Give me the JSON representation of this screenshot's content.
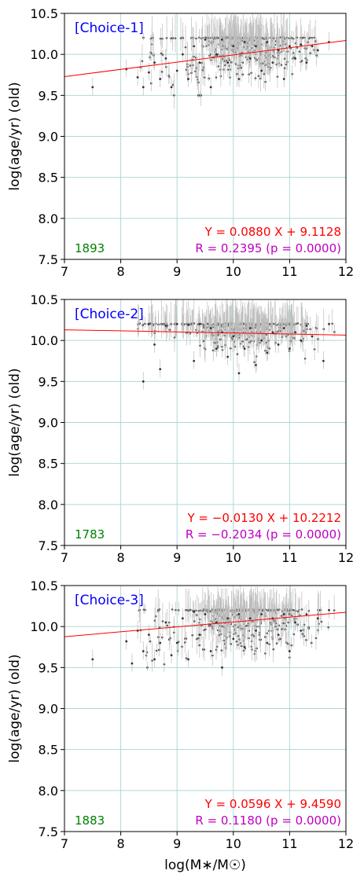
{
  "chart_data": [
    {
      "type": "scatter",
      "title": "",
      "panel_label": "[Choice-1]",
      "xlabel": "",
      "ylabel": "log(age/yr) (old)",
      "xlim": [
        7,
        12
      ],
      "ylim": [
        7.5,
        10.5
      ],
      "xticks": [
        "7",
        "8",
        "9",
        "10",
        "11",
        "12"
      ],
      "yticks": [
        "7.5",
        "8.0",
        "8.5",
        "9.0",
        "9.5",
        "10.0",
        "10.5"
      ],
      "grid": true,
      "count": "1893",
      "fit_equation": "Y = 0.0880 X + 9.1128",
      "fit_stats": "R = 0.2395 (p = 0.0000)",
      "fit": {
        "slope": 0.088,
        "intercept": 9.1128
      },
      "sample_points": [
        [
          7.5,
          9.6
        ],
        [
          8.1,
          9.82
        ],
        [
          8.3,
          9.72
        ],
        [
          8.4,
          9.6
        ],
        [
          8.5,
          9.78
        ],
        [
          8.6,
          9.9
        ],
        [
          8.7,
          9.7
        ],
        [
          8.8,
          9.95
        ],
        [
          8.9,
          9.6
        ],
        [
          9.0,
          9.8
        ],
        [
          9.1,
          10.0
        ],
        [
          9.2,
          9.7
        ],
        [
          9.3,
          10.1
        ],
        [
          9.4,
          9.9
        ],
        [
          9.5,
          10.18
        ],
        [
          9.6,
          9.6
        ],
        [
          9.7,
          10.0
        ],
        [
          9.8,
          10.18
        ],
        [
          9.9,
          9.9
        ],
        [
          10.0,
          10.1
        ],
        [
          10.1,
          9.7
        ],
        [
          10.2,
          10.15
        ],
        [
          10.3,
          9.95
        ],
        [
          10.4,
          10.1
        ],
        [
          10.5,
          9.8
        ],
        [
          10.6,
          10.15
        ],
        [
          10.7,
          9.9
        ],
        [
          10.8,
          10.05
        ],
        [
          10.9,
          9.7
        ],
        [
          11.0,
          10.1
        ],
        [
          11.1,
          9.95
        ],
        [
          11.2,
          10.12
        ],
        [
          11.3,
          9.9
        ],
        [
          11.4,
          10.1
        ],
        [
          11.5,
          10.05
        ],
        [
          11.7,
          10.15
        ]
      ]
    },
    {
      "type": "scatter",
      "title": "",
      "panel_label": "[Choice-2]",
      "xlabel": "",
      "ylabel": "log(age/yr) (old)",
      "xlim": [
        7,
        12
      ],
      "ylim": [
        7.5,
        10.5
      ],
      "xticks": [
        "7",
        "8",
        "9",
        "10",
        "11",
        "12"
      ],
      "yticks": [
        "7.5",
        "8.0",
        "8.5",
        "9.0",
        "9.5",
        "10.0",
        "10.5"
      ],
      "grid": true,
      "count": "1783",
      "fit_equation": "Y = −0.0130 X + 10.2212",
      "fit_stats": "R = −0.2034 (p = 0.0000)",
      "fit": {
        "slope": -0.013,
        "intercept": 10.2212
      },
      "sample_points": [
        [
          8.4,
          9.5
        ],
        [
          8.5,
          10.2
        ],
        [
          8.6,
          9.95
        ],
        [
          8.7,
          9.65
        ],
        [
          8.8,
          10.18
        ],
        [
          9.0,
          10.2
        ],
        [
          9.2,
          10.19
        ],
        [
          9.3,
          9.75
        ],
        [
          9.4,
          10.2
        ],
        [
          9.6,
          10.15
        ],
        [
          9.7,
          9.9
        ],
        [
          9.8,
          10.1
        ],
        [
          9.9,
          9.8
        ],
        [
          10.0,
          10.05
        ],
        [
          10.1,
          9.6
        ],
        [
          10.2,
          9.9
        ],
        [
          10.3,
          10.15
        ],
        [
          10.4,
          9.7
        ],
        [
          10.5,
          10.0
        ],
        [
          10.6,
          9.85
        ],
        [
          10.7,
          10.1
        ],
        [
          10.8,
          9.95
        ],
        [
          10.9,
          10.15
        ],
        [
          11.0,
          9.9
        ],
        [
          11.1,
          10.1
        ],
        [
          11.2,
          10.0
        ],
        [
          11.3,
          10.18
        ],
        [
          11.4,
          10.05
        ],
        [
          11.6,
          9.75
        ],
        [
          11.7,
          10.2
        ]
      ]
    },
    {
      "type": "scatter",
      "title": "",
      "panel_label": "[Choice-3]",
      "xlabel": "log(M∗/M☉)",
      "ylabel": "log(age/yr) (old)",
      "xlim": [
        7,
        12
      ],
      "ylim": [
        7.5,
        10.5
      ],
      "xticks": [
        "7",
        "8",
        "9",
        "10",
        "11",
        "12"
      ],
      "yticks": [
        "7.5",
        "8.0",
        "8.5",
        "9.0",
        "9.5",
        "10.0",
        "10.5"
      ],
      "grid": true,
      "count": "1883",
      "fit_equation": "Y = 0.0596 X + 9.4590",
      "fit_stats": "R = 0.1180 (p = 0.0000)",
      "fit": {
        "slope": 0.0596,
        "intercept": 9.459
      },
      "sample_points": [
        [
          7.5,
          9.6
        ],
        [
          8.1,
          9.82
        ],
        [
          8.2,
          9.55
        ],
        [
          8.3,
          9.95
        ],
        [
          8.4,
          9.7
        ],
        [
          8.5,
          9.9
        ],
        [
          8.6,
          9.6
        ],
        [
          8.7,
          9.8
        ],
        [
          8.8,
          10.05
        ],
        [
          8.9,
          9.65
        ],
        [
          9.0,
          9.8
        ],
        [
          9.1,
          10.1
        ],
        [
          9.2,
          9.6
        ],
        [
          9.3,
          10.18
        ],
        [
          9.4,
          9.9
        ],
        [
          9.5,
          10.15
        ],
        [
          9.6,
          9.7
        ],
        [
          9.7,
          10.05
        ],
        [
          9.8,
          9.5
        ],
        [
          9.9,
          10.1
        ],
        [
          10.0,
          9.85
        ],
        [
          10.1,
          10.15
        ],
        [
          10.2,
          9.75
        ],
        [
          10.3,
          10.1
        ],
        [
          10.4,
          9.95
        ],
        [
          10.5,
          10.15
        ],
        [
          10.6,
          9.8
        ],
        [
          10.7,
          10.1
        ],
        [
          10.8,
          9.9
        ],
        [
          10.9,
          10.15
        ],
        [
          11.0,
          9.7
        ],
        [
          11.1,
          10.05
        ],
        [
          11.2,
          9.95
        ],
        [
          11.3,
          10.15
        ],
        [
          11.5,
          10.1
        ],
        [
          11.7,
          10.2
        ]
      ]
    }
  ],
  "colors": {
    "points": "#333333",
    "errorbars": "#bdbdbd",
    "fit_line": "#ff0000",
    "grid": "#b0d8d8",
    "panel_label": "#0000ff",
    "count": "#008000",
    "fit_equation": "#ff0000",
    "fit_stats": "#bf00bf"
  }
}
